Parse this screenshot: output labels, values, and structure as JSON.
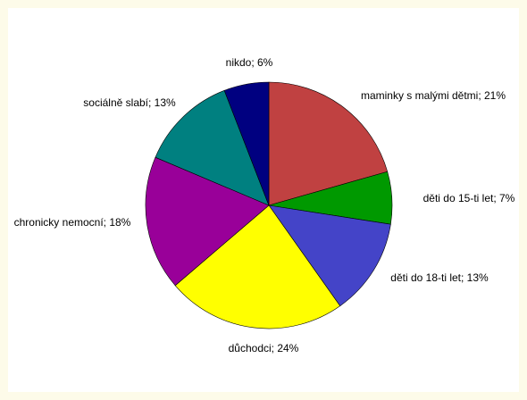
{
  "chart_data": {
    "type": "pie",
    "start_angle_deg": 0,
    "direction": "clockwise",
    "slices": [
      {
        "label": "maminky s malými dětmi; 21%",
        "category": "maminky s malými dětmi",
        "value": 21,
        "color": "#c04141"
      },
      {
        "label": "děti do 15-ti let; 7%",
        "category": "děti do 15-ti let",
        "value": 7,
        "color": "#009900"
      },
      {
        "label": "děti do 18-ti let; 13%",
        "category": "děti do 18-ti let",
        "value": 13,
        "color": "#4444c8"
      },
      {
        "label": "důchodci; 24%",
        "category": "důchodci",
        "value": 24,
        "color": "#ffff00"
      },
      {
        "label": "chronicky nemocní; 18%",
        "category": "chronicky nemocní",
        "value": 18,
        "color": "#990099"
      },
      {
        "label": "sociálně slabí; 13%",
        "category": "sociálně slabí",
        "value": 13,
        "color": "#008080"
      },
      {
        "label": "nikdo; 6%",
        "category": "nikdo",
        "value": 6,
        "color": "#000080"
      }
    ],
    "legend": "none",
    "data_labels": "outside"
  }
}
